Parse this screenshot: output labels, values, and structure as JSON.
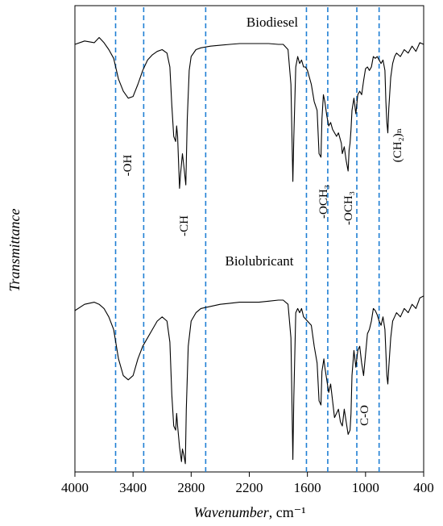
{
  "chart_data": {
    "type": "line",
    "x_axis": {
      "range": [
        4000,
        400
      ],
      "reversed": true,
      "ticks": [
        4000,
        3400,
        2800,
        2200,
        1600,
        1000,
        400
      ],
      "tick_labels": [
        "4000",
        "3400",
        "2800",
        "2200",
        "1600",
        "1000",
        "400"
      ],
      "label_main": "Wavenumber",
      "label_unit": ", cm⁻¹"
    },
    "y_axis": {
      "label": "Transmittance",
      "ticks": false
    },
    "grid": false,
    "series": [
      {
        "name": "Biodiesel",
        "points": [
          [
            4000,
            0.93
          ],
          [
            3900,
            0.95
          ],
          [
            3800,
            0.94
          ],
          [
            3750,
            0.97
          ],
          [
            3700,
            0.94
          ],
          [
            3650,
            0.9
          ],
          [
            3600,
            0.85
          ],
          [
            3550,
            0.73
          ],
          [
            3500,
            0.66
          ],
          [
            3450,
            0.62
          ],
          [
            3400,
            0.63
          ],
          [
            3350,
            0.7
          ],
          [
            3300,
            0.78
          ],
          [
            3250,
            0.84
          ],
          [
            3200,
            0.87
          ],
          [
            3150,
            0.89
          ],
          [
            3100,
            0.9
          ],
          [
            3050,
            0.88
          ],
          [
            3020,
            0.8
          ],
          [
            3000,
            0.58
          ],
          [
            2980,
            0.4
          ],
          [
            2960,
            0.37
          ],
          [
            2950,
            0.46
          ],
          [
            2940,
            0.4
          ],
          [
            2930,
            0.25
          ],
          [
            2920,
            0.1
          ],
          [
            2910,
            0.18
          ],
          [
            2890,
            0.3
          ],
          [
            2870,
            0.2
          ],
          [
            2855,
            0.12
          ],
          [
            2840,
            0.5
          ],
          [
            2820,
            0.78
          ],
          [
            2800,
            0.86
          ],
          [
            2750,
            0.9
          ],
          [
            2700,
            0.91
          ],
          [
            2600,
            0.92
          ],
          [
            2500,
            0.925
          ],
          [
            2400,
            0.93
          ],
          [
            2300,
            0.935
          ],
          [
            2200,
            0.935
          ],
          [
            2100,
            0.935
          ],
          [
            2000,
            0.935
          ],
          [
            1900,
            0.93
          ],
          [
            1850,
            0.93
          ],
          [
            1800,
            0.9
          ],
          [
            1770,
            0.7
          ],
          [
            1750,
            0.14
          ],
          [
            1740,
            0.4
          ],
          [
            1720,
            0.8
          ],
          [
            1700,
            0.86
          ],
          [
            1680,
            0.82
          ],
          [
            1660,
            0.84
          ],
          [
            1640,
            0.8
          ],
          [
            1620,
            0.8
          ],
          [
            1600,
            0.78
          ],
          [
            1580,
            0.74
          ],
          [
            1560,
            0.7
          ],
          [
            1530,
            0.6
          ],
          [
            1500,
            0.55
          ],
          [
            1480,
            0.3
          ],
          [
            1460,
            0.28
          ],
          [
            1450,
            0.5
          ],
          [
            1435,
            0.64
          ],
          [
            1420,
            0.6
          ],
          [
            1400,
            0.52
          ],
          [
            1380,
            0.46
          ],
          [
            1360,
            0.48
          ],
          [
            1340,
            0.44
          ],
          [
            1300,
            0.4
          ],
          [
            1280,
            0.42
          ],
          [
            1250,
            0.36
          ],
          [
            1240,
            0.3
          ],
          [
            1220,
            0.34
          ],
          [
            1200,
            0.26
          ],
          [
            1180,
            0.2
          ],
          [
            1170,
            0.32
          ],
          [
            1160,
            0.36
          ],
          [
            1150,
            0.44
          ],
          [
            1140,
            0.55
          ],
          [
            1120,
            0.62
          ],
          [
            1100,
            0.53
          ],
          [
            1080,
            0.64
          ],
          [
            1060,
            0.66
          ],
          [
            1040,
            0.64
          ],
          [
            1020,
            0.72
          ],
          [
            1000,
            0.79
          ],
          [
            980,
            0.8
          ],
          [
            960,
            0.78
          ],
          [
            940,
            0.8
          ],
          [
            920,
            0.86
          ],
          [
            900,
            0.85
          ],
          [
            880,
            0.86
          ],
          [
            860,
            0.84
          ],
          [
            840,
            0.82
          ],
          [
            820,
            0.84
          ],
          [
            800,
            0.78
          ],
          [
            790,
            0.6
          ],
          [
            780,
            0.48
          ],
          [
            770,
            0.42
          ],
          [
            760,
            0.56
          ],
          [
            740,
            0.74
          ],
          [
            720,
            0.82
          ],
          [
            700,
            0.86
          ],
          [
            680,
            0.88
          ],
          [
            640,
            0.86
          ],
          [
            600,
            0.9
          ],
          [
            560,
            0.88
          ],
          [
            520,
            0.92
          ],
          [
            480,
            0.89
          ],
          [
            440,
            0.94
          ],
          [
            400,
            0.93
          ]
        ]
      },
      {
        "name": "Biolubricant",
        "points": [
          [
            4000,
            0.75
          ],
          [
            3900,
            0.78
          ],
          [
            3800,
            0.79
          ],
          [
            3750,
            0.78
          ],
          [
            3700,
            0.76
          ],
          [
            3650,
            0.72
          ],
          [
            3600,
            0.66
          ],
          [
            3550,
            0.52
          ],
          [
            3500,
            0.44
          ],
          [
            3450,
            0.42
          ],
          [
            3400,
            0.44
          ],
          [
            3350,
            0.52
          ],
          [
            3300,
            0.58
          ],
          [
            3250,
            0.62
          ],
          [
            3200,
            0.66
          ],
          [
            3150,
            0.7
          ],
          [
            3100,
            0.72
          ],
          [
            3050,
            0.7
          ],
          [
            3020,
            0.6
          ],
          [
            3000,
            0.35
          ],
          [
            2980,
            0.2
          ],
          [
            2960,
            0.18
          ],
          [
            2950,
            0.26
          ],
          [
            2940,
            0.2
          ],
          [
            2920,
            0.1
          ],
          [
            2900,
            0.03
          ],
          [
            2890,
            0.09
          ],
          [
            2875,
            0.06
          ],
          [
            2860,
            0.02
          ],
          [
            2850,
            0.28
          ],
          [
            2830,
            0.58
          ],
          [
            2800,
            0.7
          ],
          [
            2750,
            0.74
          ],
          [
            2700,
            0.76
          ],
          [
            2600,
            0.77
          ],
          [
            2500,
            0.78
          ],
          [
            2400,
            0.785
          ],
          [
            2300,
            0.79
          ],
          [
            2200,
            0.79
          ],
          [
            2100,
            0.79
          ],
          [
            2000,
            0.795
          ],
          [
            1900,
            0.8
          ],
          [
            1850,
            0.8
          ],
          [
            1800,
            0.78
          ],
          [
            1770,
            0.62
          ],
          [
            1750,
            0.04
          ],
          [
            1740,
            0.34
          ],
          [
            1720,
            0.74
          ],
          [
            1700,
            0.76
          ],
          [
            1680,
            0.74
          ],
          [
            1660,
            0.76
          ],
          [
            1640,
            0.72
          ],
          [
            1600,
            0.7
          ],
          [
            1560,
            0.68
          ],
          [
            1530,
            0.58
          ],
          [
            1500,
            0.5
          ],
          [
            1480,
            0.32
          ],
          [
            1460,
            0.3
          ],
          [
            1450,
            0.46
          ],
          [
            1430,
            0.52
          ],
          [
            1420,
            0.48
          ],
          [
            1400,
            0.42
          ],
          [
            1380,
            0.36
          ],
          [
            1360,
            0.4
          ],
          [
            1340,
            0.32
          ],
          [
            1320,
            0.24
          ],
          [
            1300,
            0.26
          ],
          [
            1280,
            0.28
          ],
          [
            1260,
            0.22
          ],
          [
            1240,
            0.2
          ],
          [
            1220,
            0.28
          ],
          [
            1200,
            0.22
          ],
          [
            1180,
            0.16
          ],
          [
            1160,
            0.18
          ],
          [
            1150,
            0.26
          ],
          [
            1140,
            0.44
          ],
          [
            1120,
            0.56
          ],
          [
            1100,
            0.48
          ],
          [
            1080,
            0.56
          ],
          [
            1060,
            0.58
          ],
          [
            1040,
            0.5
          ],
          [
            1020,
            0.44
          ],
          [
            1000,
            0.54
          ],
          [
            980,
            0.64
          ],
          [
            960,
            0.66
          ],
          [
            940,
            0.7
          ],
          [
            920,
            0.76
          ],
          [
            900,
            0.75
          ],
          [
            880,
            0.73
          ],
          [
            860,
            0.7
          ],
          [
            840,
            0.68
          ],
          [
            820,
            0.72
          ],
          [
            800,
            0.66
          ],
          [
            780,
            0.44
          ],
          [
            770,
            0.4
          ],
          [
            760,
            0.48
          ],
          [
            740,
            0.62
          ],
          [
            720,
            0.7
          ],
          [
            700,
            0.72
          ],
          [
            680,
            0.74
          ],
          [
            640,
            0.72
          ],
          [
            600,
            0.76
          ],
          [
            560,
            0.74
          ],
          [
            520,
            0.78
          ],
          [
            480,
            0.76
          ],
          [
            440,
            0.81
          ],
          [
            400,
            0.82
          ]
        ]
      }
    ],
    "markers_cm1": [
      3580,
      3290,
      2650,
      1610,
      1390,
      1090,
      860
    ],
    "annotations": [
      "-OH",
      "-CH",
      "-OCH₃",
      "-OCH₃",
      "(CH₂)ₙ",
      "C-O"
    ]
  },
  "colors": {
    "marker": "#1f7fd4",
    "curve": "#000000",
    "axis": "#000000"
  }
}
